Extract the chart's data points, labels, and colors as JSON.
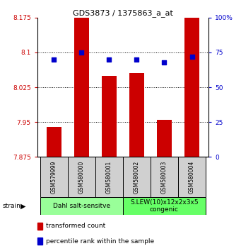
{
  "title": "GDS3873 / 1375863_a_at",
  "samples": [
    "GSM579999",
    "GSM580000",
    "GSM580001",
    "GSM580002",
    "GSM580003",
    "GSM580004"
  ],
  "bar_values": [
    7.94,
    8.175,
    8.05,
    8.055,
    7.955,
    8.175
  ],
  "bar_base": 7.875,
  "percentile_values": [
    70,
    75,
    70,
    70,
    68,
    72
  ],
  "bar_color": "#cc0000",
  "dot_color": "#0000cc",
  "ylim_left": [
    7.875,
    8.175
  ],
  "ylim_right": [
    0,
    100
  ],
  "yticks_left": [
    7.875,
    7.95,
    8.025,
    8.1,
    8.175
  ],
  "yticks_right": [
    0,
    25,
    50,
    75,
    100
  ],
  "ytick_labels_left": [
    "7.875",
    "7.95",
    "8.025",
    "8.1",
    "8.175"
  ],
  "ytick_labels_right": [
    "0",
    "25",
    "50",
    "75",
    "100%"
  ],
  "groups": [
    {
      "label": "Dahl salt-sensitve",
      "samples": [
        0,
        1,
        2
      ],
      "color": "#99ff99"
    },
    {
      "label": "S.LEW(10)x12x2x3x5\ncongenic",
      "samples": [
        3,
        4,
        5
      ],
      "color": "#66ff66"
    }
  ],
  "legend_items": [
    {
      "color": "#cc0000",
      "label": "transformed count"
    },
    {
      "color": "#0000cc",
      "label": "percentile rank within the sample"
    }
  ],
  "strain_label": "strain",
  "grid_color": "#000000",
  "background_color": "#ffffff",
  "bar_width": 0.55,
  "dot_size": 18,
  "sample_box_color": "#d0d0d0",
  "title_fontsize": 8,
  "tick_fontsize": 6.5,
  "sample_fontsize": 5.5,
  "group_fontsize": 6.5,
  "legend_fontsize": 6.5
}
